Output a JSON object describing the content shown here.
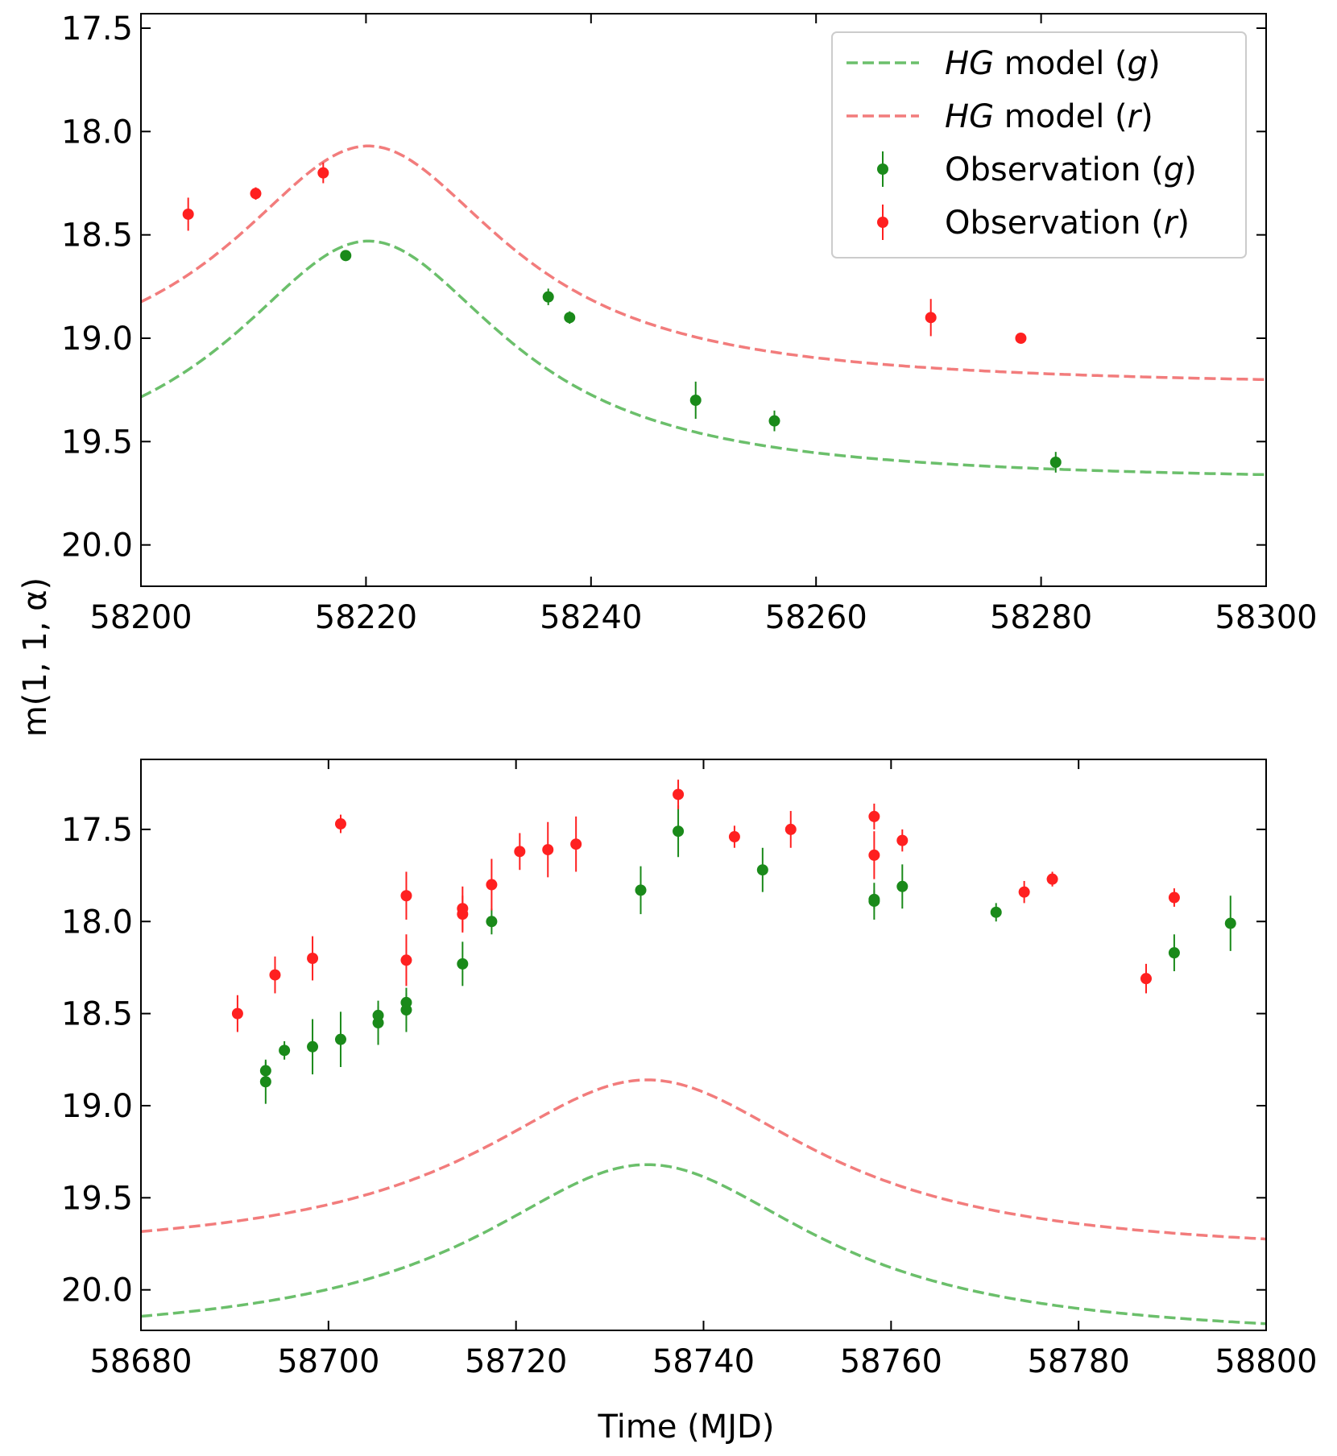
{
  "figure": {
    "ylabel": "m(1, 1, α)",
    "xlabel": "Time (MJD)"
  },
  "legend": {
    "placement": "top-right",
    "entries": [
      {
        "label_ital": "HG",
        "label_rest": " model (",
        "band": "g",
        "close": ")",
        "kind": "line",
        "color": "#6bbf6b"
      },
      {
        "label_ital": "HG",
        "label_rest": " model (",
        "band": "r",
        "close": ")",
        "kind": "line",
        "color": "#f27c7c"
      },
      {
        "label_ital": "",
        "label_rest": "Observation (",
        "band": "g",
        "close": ")",
        "kind": "point",
        "color": "#1a8a1a"
      },
      {
        "label_ital": "",
        "label_rest": "Observation (",
        "band": "r",
        "close": ")",
        "kind": "point",
        "color": "#ff2020"
      }
    ]
  },
  "chart_data": [
    {
      "type": "scatter",
      "xlim": [
        58200,
        58300
      ],
      "ylim": [
        20.2,
        17.43
      ],
      "y_inverted": true,
      "xticks": [
        58200,
        58220,
        58240,
        58260,
        58280,
        58300
      ],
      "xtick_labels": [
        "58200",
        "58220",
        "58240",
        "58260",
        "58280",
        "58300"
      ],
      "yticks": [
        17.5,
        18.0,
        18.5,
        19.0,
        19.5,
        20.0
      ],
      "ytick_labels": [
        "17.5",
        "18.0",
        "18.5",
        "19.0",
        "19.5",
        "20.0"
      ],
      "grid": false,
      "legend": true,
      "model_g": {
        "peak_x": 58220.2,
        "peak_y": 18.53,
        "tail_y": 19.7,
        "width": 15
      },
      "model_r": {
        "peak_x": 58220.2,
        "peak_y": 18.07,
        "tail_y": 19.24,
        "width": 15
      },
      "obs_g": [
        {
          "x": 58218.2,
          "y": 18.6,
          "err": 0.02
        },
        {
          "x": 58236.2,
          "y": 18.8,
          "err": 0.04
        },
        {
          "x": 58238.1,
          "y": 18.9,
          "err": 0.03
        },
        {
          "x": 58249.3,
          "y": 19.3,
          "err": 0.09
        },
        {
          "x": 58256.3,
          "y": 19.4,
          "err": 0.05
        },
        {
          "x": 58281.3,
          "y": 19.6,
          "err": 0.05
        }
      ],
      "obs_r": [
        {
          "x": 58204.2,
          "y": 18.4,
          "err": 0.08
        },
        {
          "x": 58210.2,
          "y": 18.3,
          "err": 0.03
        },
        {
          "x": 58216.2,
          "y": 18.2,
          "err": 0.05
        },
        {
          "x": 58270.2,
          "y": 18.9,
          "err": 0.09
        },
        {
          "x": 58278.2,
          "y": 19.0,
          "err": 0.02
        }
      ]
    },
    {
      "type": "scatter",
      "xlim": [
        58680,
        58800
      ],
      "ylim": [
        20.22,
        17.12
      ],
      "y_inverted": true,
      "xticks": [
        58680,
        58700,
        58720,
        58740,
        58760,
        58780,
        58800
      ],
      "xtick_labels": [
        "58680",
        "58700",
        "58720",
        "58740",
        "58760",
        "58780",
        "58800"
      ],
      "yticks": [
        17.5,
        18.0,
        18.5,
        19.0,
        19.5,
        20.0
      ],
      "ytick_labels": [
        "17.5",
        "18.0",
        "18.5",
        "19.0",
        "19.5",
        "20.0"
      ],
      "grid": false,
      "legend": false,
      "model_g": {
        "peak_x": 58734,
        "peak_y": 19.32,
        "tail_y": 20.28,
        "width": 22
      },
      "model_r": {
        "peak_x": 58734,
        "peak_y": 18.86,
        "tail_y": 19.82,
        "width": 22
      },
      "obs_g": [
        {
          "x": 58693.3,
          "y": 18.81,
          "err": 0.05
        },
        {
          "x": 58693.3,
          "y": 18.87,
          "err": 0.12
        },
        {
          "x": 58695.3,
          "y": 18.7,
          "err": 0.05
        },
        {
          "x": 58698.3,
          "y": 18.68,
          "err": 0.15
        },
        {
          "x": 58701.3,
          "y": 18.64,
          "err": 0.15
        },
        {
          "x": 58705.3,
          "y": 18.51,
          "err": 0.05
        },
        {
          "x": 58705.3,
          "y": 18.55,
          "err": 0.12
        },
        {
          "x": 58708.3,
          "y": 18.44,
          "err": 0.05
        },
        {
          "x": 58708.3,
          "y": 18.48,
          "err": 0.12
        },
        {
          "x": 58714.3,
          "y": 18.23,
          "err": 0.12
        },
        {
          "x": 58717.4,
          "y": 18.0,
          "err": 0.07
        },
        {
          "x": 58733.3,
          "y": 17.83,
          "err": 0.13
        },
        {
          "x": 58737.3,
          "y": 17.51,
          "err": 0.14
        },
        {
          "x": 58746.3,
          "y": 17.72,
          "err": 0.12
        },
        {
          "x": 58758.2,
          "y": 17.88,
          "err": 0.05
        },
        {
          "x": 58758.2,
          "y": 17.89,
          "err": 0.1
        },
        {
          "x": 58761.2,
          "y": 17.81,
          "err": 0.12
        },
        {
          "x": 58771.2,
          "y": 17.95,
          "err": 0.05
        },
        {
          "x": 58790.2,
          "y": 18.17,
          "err": 0.1
        },
        {
          "x": 58796.2,
          "y": 18.01,
          "err": 0.15
        }
      ],
      "obs_r": [
        {
          "x": 58690.3,
          "y": 18.5,
          "err": 0.1
        },
        {
          "x": 58694.3,
          "y": 18.29,
          "err": 0.1
        },
        {
          "x": 58698.3,
          "y": 18.2,
          "err": 0.12
        },
        {
          "x": 58701.3,
          "y": 17.47,
          "err": 0.05
        },
        {
          "x": 58708.3,
          "y": 17.86,
          "err": 0.13
        },
        {
          "x": 58708.3,
          "y": 18.21,
          "err": 0.14
        },
        {
          "x": 58714.3,
          "y": 17.93,
          "err": 0.12
        },
        {
          "x": 58714.3,
          "y": 17.96,
          "err": 0.1
        },
        {
          "x": 58717.4,
          "y": 17.8,
          "err": 0.14
        },
        {
          "x": 58720.4,
          "y": 17.62,
          "err": 0.1
        },
        {
          "x": 58723.4,
          "y": 17.61,
          "err": 0.15
        },
        {
          "x": 58726.4,
          "y": 17.58,
          "err": 0.15
        },
        {
          "x": 58737.3,
          "y": 17.31,
          "err": 0.08
        },
        {
          "x": 58743.3,
          "y": 17.54,
          "err": 0.06
        },
        {
          "x": 58749.3,
          "y": 17.5,
          "err": 0.1
        },
        {
          "x": 58758.2,
          "y": 17.43,
          "err": 0.07
        },
        {
          "x": 58758.2,
          "y": 17.64,
          "err": 0.13
        },
        {
          "x": 58761.2,
          "y": 17.56,
          "err": 0.06
        },
        {
          "x": 58774.2,
          "y": 17.84,
          "err": 0.06
        },
        {
          "x": 58777.2,
          "y": 17.77,
          "err": 0.04
        },
        {
          "x": 58787.2,
          "y": 18.31,
          "err": 0.08
        },
        {
          "x": 58790.2,
          "y": 17.87,
          "err": 0.05
        }
      ]
    }
  ],
  "colors": {
    "obs_g": "#1a8a1a",
    "obs_r": "#ff2020",
    "model_g": "#6bbf6b",
    "model_r": "#f27c7c"
  }
}
